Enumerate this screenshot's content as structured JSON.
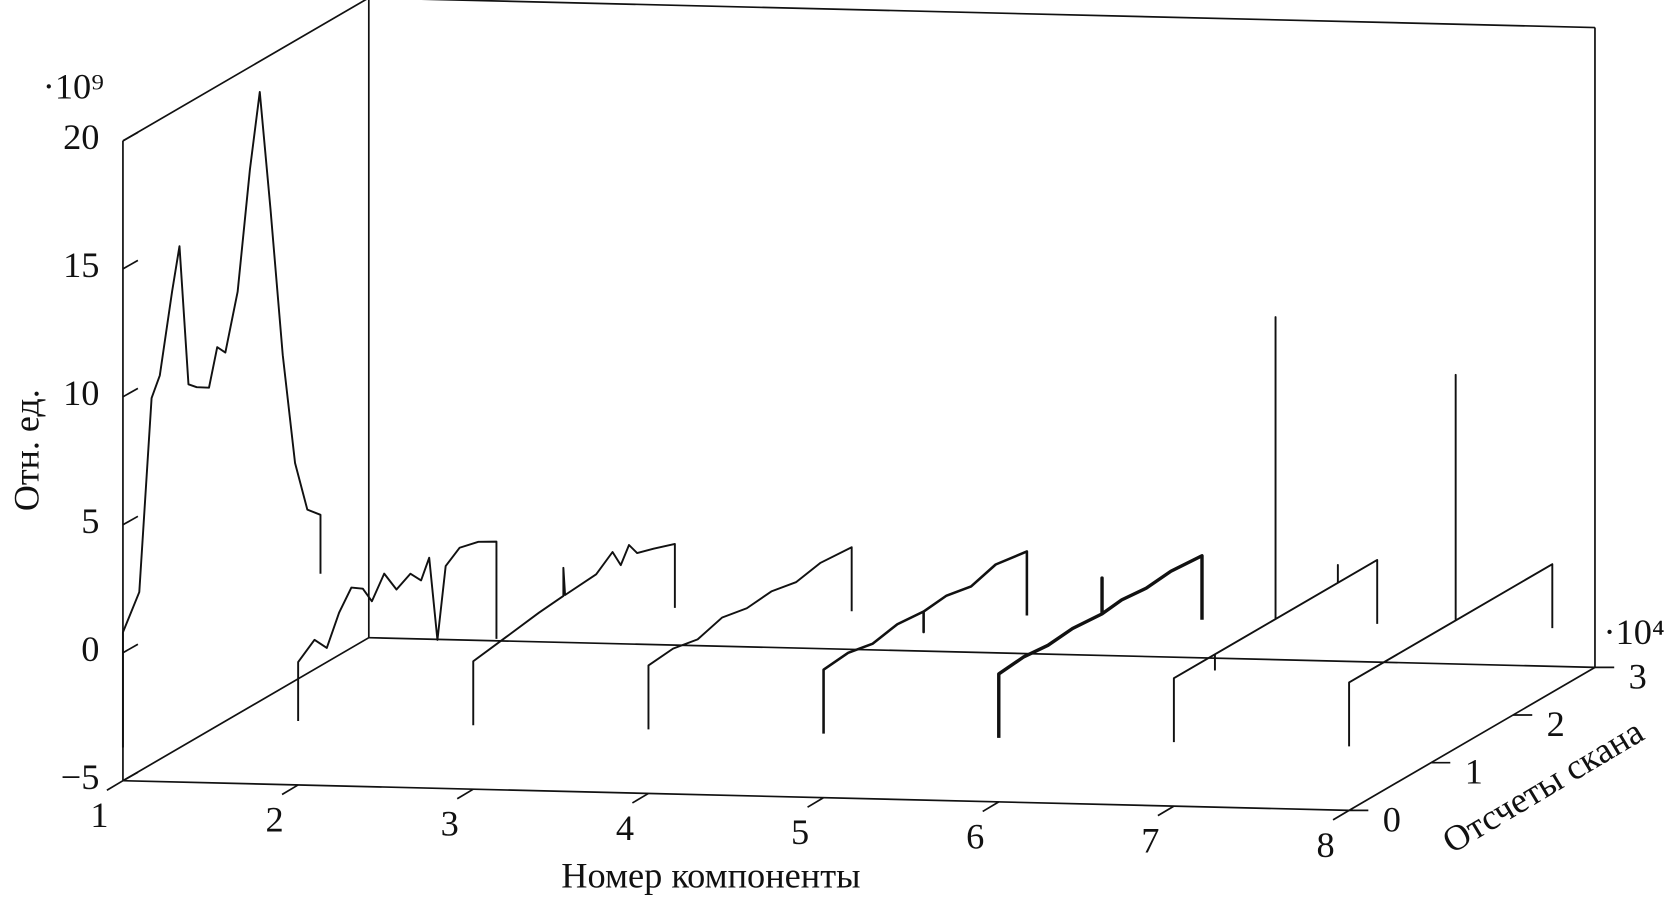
{
  "chart_data": {
    "type": "waterfall3d",
    "ylabel": "Отн. ед.",
    "xlabel": "Номер компоненты",
    "zlabel": "Отсчеты скана",
    "y_multiplier": "·10⁹",
    "z_multiplier": "·10⁴",
    "xlim": [
      1,
      8
    ],
    "ylim": [
      -5,
      20
    ],
    "zlim": [
      0,
      3
    ],
    "xticks": [
      1,
      2,
      3,
      4,
      5,
      6,
      7,
      8
    ],
    "yticks": [
      {
        "value": -5,
        "label": "−5"
      },
      0,
      5,
      10,
      15,
      20
    ],
    "zticks": [
      0,
      1,
      2,
      3
    ],
    "color": "#111111",
    "series": [
      {
        "x": 1,
        "z": [
          0,
          0,
          0.2,
          0.35,
          0.45,
          0.6,
          0.69,
          0.8,
          0.9,
          1.05,
          1.15,
          1.25,
          1.4,
          1.55,
          1.67,
          1.8,
          1.95,
          2.1,
          2.25,
          2.41,
          2.41
        ],
        "values": [
          -3.7,
          0.8,
          2,
          9.3,
          10,
          13,
          14.6,
          9,
          8.7,
          8.4,
          9.8,
          9.4,
          11.5,
          16,
          18.8,
          14,
          8,
          3.5,
          1.4,
          0.9,
          -1.4
        ]
      },
      {
        "x": 2,
        "z": [
          0,
          0,
          0.2,
          0.35,
          0.5,
          0.65,
          0.79,
          0.9,
          1.05,
          1.2,
          1.37,
          1.5,
          1.6,
          1.7,
          1.8,
          1.97,
          2.2,
          2.42,
          2.42
        ],
        "values": [
          -2.5,
          -0.2,
          0.3,
          -0.3,
          0.8,
          1.5,
          1.2,
          0.5,
          1.3,
          0.4,
          0.7,
          0.2,
          0.9,
          -2.5,
          0.2,
          0.6,
          0.4,
          0,
          -3.8
        ]
      },
      {
        "x": 3,
        "z": [
          0,
          0,
          0.4,
          0.8,
          1.1,
          1.1,
          1.12,
          1.5,
          1.7,
          1.8,
          1.9,
          2.0,
          2.2,
          2.46,
          2.46
        ],
        "values": [
          -2.5,
          0,
          0.2,
          0.4,
          0.5,
          1.6,
          0.5,
          0.6,
          1.1,
          0.4,
          1.0,
          0.5,
          0.3,
          0,
          -2.5
        ]
      },
      {
        "x": 4,
        "z": [
          0,
          0,
          0.3,
          0.6,
          0.9,
          1.2,
          1.5,
          1.8,
          2.1,
          2.48,
          2.48
        ],
        "values": [
          -2.5,
          0,
          0.1,
          -0.1,
          0.2,
          0,
          0.1,
          -0.1,
          0.1,
          0,
          -2.5
        ]
      },
      {
        "x": 5,
        "z": [
          0,
          0,
          0.3,
          0.6,
          0.9,
          1.22,
          1.22,
          1.22,
          1.5,
          1.8,
          2.1,
          2.48,
          2.48
        ],
        "values": [
          -2.5,
          0,
          0.1,
          -0.1,
          0.1,
          0,
          -0.8,
          0,
          0.1,
          -0.1,
          0.2,
          0,
          -2.5
        ]
      },
      {
        "x": 6,
        "z": [
          0,
          0,
          0.3,
          0.6,
          0.9,
          1.26,
          1.26,
          1.26,
          1.5,
          1.8,
          2.1,
          2.48,
          2.48
        ],
        "values": [
          -2.5,
          0,
          0.1,
          0,
          0.1,
          0,
          1.4,
          0,
          0.1,
          0,
          0.1,
          0,
          -2.5
        ]
      },
      {
        "x": 7,
        "z": [
          0,
          0,
          0.5,
          0.5,
          0.5,
          1.24,
          1.24,
          1.24,
          2.0,
          2.0,
          2.0,
          2.48,
          2.48
        ],
        "values": [
          -2.5,
          0,
          0,
          -0.6,
          0,
          0,
          11.8,
          0,
          0,
          0.7,
          0,
          0,
          -2.5
        ]
      },
      {
        "x": 8,
        "z": [
          0,
          0,
          1.3,
          1.3,
          1.3,
          2.48,
          2.48
        ],
        "values": [
          -2.5,
          0,
          0,
          9.6,
          0,
          0,
          -2.5
        ]
      }
    ]
  }
}
